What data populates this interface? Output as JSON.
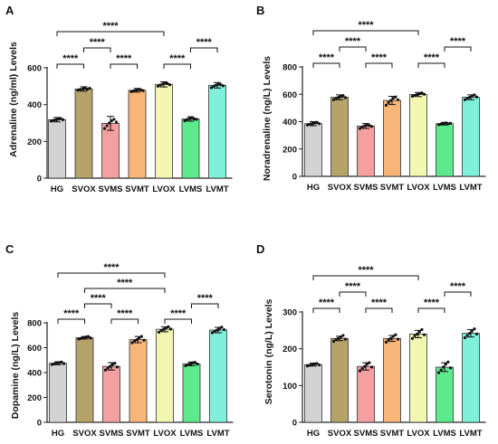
{
  "chart_data": [
    {
      "type": "bar",
      "panel": "A",
      "ylabel": "Adrenaline (ng/ml) Levels",
      "categories": [
        "HG",
        "SVOX",
        "SVMS",
        "SVMT",
        "LVOX",
        "LVMS",
        "LVMT"
      ],
      "values": [
        318,
        485,
        298,
        478,
        510,
        322,
        505
      ],
      "errors": [
        12,
        12,
        38,
        10,
        14,
        12,
        15
      ],
      "points": [
        [
          310,
          314,
          318,
          321,
          325,
          318
        ],
        [
          478,
          482,
          486,
          490,
          484,
          489
        ],
        [
          270,
          285,
          300,
          312,
          320,
          305
        ],
        [
          470,
          474,
          478,
          482,
          480,
          476
        ],
        [
          500,
          506,
          512,
          518,
          514,
          508
        ],
        [
          312,
          318,
          324,
          328,
          322,
          320
        ],
        [
          492,
          500,
          506,
          512,
          508,
          502
        ]
      ],
      "ylim": [
        0,
        600
      ],
      "yticks": [
        0,
        200,
        400,
        600
      ],
      "ytick_labels": [
        "0",
        "200",
        "400",
        "600"
      ],
      "brackets": [
        {
          "from": 0,
          "to": 4,
          "label": "****",
          "level": 3
        },
        {
          "from": 1,
          "to": 2,
          "label": "****",
          "level": 2
        },
        {
          "from": 0,
          "to": 1,
          "label": "****",
          "level": 1
        },
        {
          "from": 2,
          "to": 3,
          "label": "****",
          "level": 1
        },
        {
          "from": 4,
          "to": 5,
          "label": "****",
          "level": 1
        },
        {
          "from": 5,
          "to": 6,
          "label": "****",
          "level": 2
        }
      ]
    },
    {
      "type": "bar",
      "panel": "B",
      "ylabel": "Noradrenaline (ng/L) Levels",
      "categories": [
        "HG",
        "SVOX",
        "SVMS",
        "SVMT",
        "LVOX",
        "LVMS",
        "LVMT"
      ],
      "values": [
        385,
        578,
        368,
        555,
        598,
        385,
        578
      ],
      "errors": [
        15,
        18,
        18,
        30,
        15,
        10,
        18
      ],
      "points": [
        [
          375,
          380,
          385,
          390,
          395,
          385
        ],
        [
          560,
          570,
          578,
          585,
          590,
          575
        ],
        [
          350,
          360,
          370,
          378,
          372,
          365
        ],
        [
          520,
          540,
          555,
          570,
          580,
          560
        ],
        [
          585,
          592,
          598,
          605,
          610,
          600
        ],
        [
          378,
          382,
          386,
          390,
          384,
          388
        ],
        [
          560,
          570,
          578,
          588,
          595,
          580
        ]
      ],
      "ylim": [
        0,
        800
      ],
      "yticks": [
        0,
        200,
        400,
        600,
        800
      ],
      "ytick_labels": [
        "0",
        "200",
        "400",
        "600",
        "800"
      ],
      "brackets": [
        {
          "from": 0,
          "to": 4,
          "label": "****",
          "level": 3
        },
        {
          "from": 1,
          "to": 2,
          "label": "****",
          "level": 2
        },
        {
          "from": 0,
          "to": 1,
          "label": "****",
          "level": 1
        },
        {
          "from": 2,
          "to": 3,
          "label": "****",
          "level": 1
        },
        {
          "from": 4,
          "to": 5,
          "label": "****",
          "level": 1
        },
        {
          "from": 5,
          "to": 6,
          "label": "****",
          "level": 2
        }
      ]
    },
    {
      "type": "bar",
      "panel": "C",
      "ylabel": "Dopamine (ng/L) Levels",
      "categories": [
        "HG",
        "SVOX",
        "SVMS",
        "SVMT",
        "LVOX",
        "LVMS",
        "LVMT"
      ],
      "values": [
        475,
        680,
        450,
        665,
        748,
        470,
        742
      ],
      "errors": [
        12,
        10,
        30,
        25,
        20,
        15,
        22
      ],
      "points": [
        [
          465,
          470,
          475,
          480,
          485,
          472
        ],
        [
          670,
          675,
          680,
          686,
          690,
          678
        ],
        [
          420,
          435,
          450,
          465,
          475,
          445
        ],
        [
          640,
          655,
          665,
          680,
          690,
          660
        ],
        [
          725,
          738,
          748,
          758,
          768,
          750
        ],
        [
          455,
          465,
          470,
          478,
          482,
          468
        ],
        [
          720,
          732,
          742,
          752,
          765,
          745
        ]
      ],
      "ylim": [
        0,
        800
      ],
      "yticks": [
        0,
        200,
        400,
        600,
        800
      ],
      "ytick_labels": [
        "0",
        "200",
        "400",
        "600",
        "800"
      ],
      "brackets": [
        {
          "from": 0,
          "to": 4,
          "label": "****",
          "level": 4
        },
        {
          "from": 1,
          "to": 4,
          "label": "****",
          "level": 3
        },
        {
          "from": 1,
          "to": 2,
          "label": "****",
          "level": 2
        },
        {
          "from": 0,
          "to": 1,
          "label": "****",
          "level": 1
        },
        {
          "from": 2,
          "to": 3,
          "label": "****",
          "level": 1
        },
        {
          "from": 4,
          "to": 5,
          "label": "****",
          "level": 1
        },
        {
          "from": 5,
          "to": 6,
          "label": "****",
          "level": 2
        }
      ]
    },
    {
      "type": "bar",
      "panel": "D",
      "ylabel": "Serotonin (ng/L) Levels",
      "categories": [
        "HG",
        "SVOX",
        "SVMS",
        "SVMT",
        "LVOX",
        "LVMS",
        "LVMT"
      ],
      "values": [
        157,
        228,
        152,
        228,
        240,
        150,
        242
      ],
      "errors": [
        4,
        6,
        10,
        8,
        10,
        12,
        10
      ],
      "points": [
        [
          153,
          155,
          157,
          159,
          160,
          156
        ],
        [
          220,
          225,
          228,
          232,
          236,
          226
        ],
        [
          140,
          146,
          152,
          158,
          162,
          150
        ],
        [
          218,
          224,
          228,
          234,
          238,
          226
        ],
        [
          228,
          235,
          240,
          246,
          252,
          238
        ],
        [
          135,
          142,
          150,
          158,
          164,
          148
        ],
        [
          230,
          236,
          242,
          248,
          254,
          240
        ]
      ],
      "ylim": [
        0,
        300
      ],
      "yticks": [
        0,
        100,
        200,
        300
      ],
      "ytick_labels": [
        "0",
        "100",
        "200",
        "300"
      ],
      "brackets": [
        {
          "from": 0,
          "to": 4,
          "label": "****",
          "level": 3
        },
        {
          "from": 1,
          "to": 2,
          "label": "****",
          "level": 2
        },
        {
          "from": 0,
          "to": 1,
          "label": "****",
          "level": 1
        },
        {
          "from": 2,
          "to": 3,
          "label": "****",
          "level": 1
        },
        {
          "from": 4,
          "to": 5,
          "label": "****",
          "level": 1
        },
        {
          "from": 5,
          "to": 6,
          "label": "****",
          "level": 2
        }
      ]
    }
  ],
  "colors": {
    "HG": "#d3d3d3",
    "SVOX": "#b5a36a",
    "SVMS": "#f4a0a0",
    "SVMT": "#f7b678",
    "LVOX": "#f3f6b0",
    "LVMS": "#5cea8c",
    "LVMT": "#7ff0d9",
    "points": "#111111",
    "axis": "#222222"
  }
}
